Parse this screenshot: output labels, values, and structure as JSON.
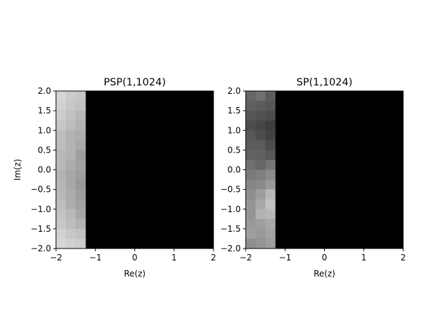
{
  "chart_data": [
    {
      "type": "heatmap",
      "title": "PSP(1,1024)",
      "xlabel": "Re(z)",
      "ylabel": "Im(z)",
      "xlim": [
        -2,
        2
      ],
      "ylim": [
        -2,
        2
      ],
      "xticks": [
        -2,
        -1,
        0,
        1,
        2
      ],
      "yticks": [
        -2.0,
        -1.5,
        -1.0,
        -0.5,
        0.0,
        0.5,
        1.0,
        1.5,
        2.0
      ],
      "xtick_labels": [
        "−2",
        "−1",
        "0",
        "1",
        "2"
      ],
      "ytick_labels": [
        "−2.0",
        "−1.5",
        "−1.0",
        "−0.5",
        "0.0",
        "0.5",
        "1.0",
        "1.5",
        "2.0"
      ],
      "colormap": "gray",
      "grid": false,
      "cell_width": 0.25,
      "cell_height": 0.25,
      "column_starts": [
        -2.0,
        -1.75,
        -1.5
      ],
      "row_starts_top_to_bottom": [
        1.75,
        1.5,
        1.25,
        1.0,
        0.75,
        0.5,
        0.25,
        0.0,
        -0.25,
        -0.5,
        -0.75,
        -1.0,
        -1.25,
        -1.5,
        -1.75,
        -2.0
      ],
      "values": [
        [
          0.84,
          0.8,
          0.78
        ],
        [
          0.82,
          0.78,
          0.76
        ],
        [
          0.8,
          0.76,
          0.72
        ],
        [
          0.78,
          0.74,
          0.7
        ],
        [
          0.74,
          0.7,
          0.68
        ],
        [
          0.74,
          0.7,
          0.66
        ],
        [
          0.72,
          0.7,
          0.62
        ],
        [
          0.72,
          0.68,
          0.64
        ],
        [
          0.7,
          0.66,
          0.62
        ],
        [
          0.72,
          0.66,
          0.6
        ],
        [
          0.72,
          0.68,
          0.62
        ],
        [
          0.74,
          0.68,
          0.64
        ],
        [
          0.76,
          0.72,
          0.66
        ],
        [
          0.78,
          0.74,
          0.7
        ],
        [
          0.82,
          0.78,
          0.76
        ],
        [
          0.84,
          0.82,
          0.8
        ]
      ],
      "background_value": 0.0
    },
    {
      "type": "heatmap",
      "title": "SP(1,1024)",
      "xlabel": "Re(z)",
      "ylabel": "",
      "xlim": [
        -2,
        2
      ],
      "ylim": [
        -2,
        2
      ],
      "xticks": [
        -2,
        -1,
        0,
        1,
        2
      ],
      "yticks": [
        -2.0,
        -1.5,
        -1.0,
        -0.5,
        0.0,
        0.5,
        1.0,
        1.5,
        2.0
      ],
      "xtick_labels": [
        "−2",
        "−1",
        "0",
        "1",
        "2"
      ],
      "ytick_labels": [
        "−2.0",
        "−1.5",
        "−1.0",
        "−0.5",
        "0.0",
        "0.5",
        "1.0",
        "1.5",
        "2.0"
      ],
      "colormap": "gray",
      "grid": false,
      "cell_width": 0.25,
      "cell_height": 0.25,
      "column_starts": [
        -2.0,
        -1.75,
        -1.5
      ],
      "row_starts_top_to_bottom": [
        1.75,
        1.5,
        1.25,
        1.0,
        0.75,
        0.5,
        0.25,
        0.0,
        -0.25,
        -0.5,
        -0.75,
        -1.0,
        -1.25,
        -1.5,
        -1.75,
        -2.0
      ],
      "values": [
        [
          0.4,
          0.44,
          0.36
        ],
        [
          0.38,
          0.36,
          0.34
        ],
        [
          0.34,
          0.32,
          0.3
        ],
        [
          0.3,
          0.28,
          0.24
        ],
        [
          0.34,
          0.3,
          0.26
        ],
        [
          0.36,
          0.36,
          0.3
        ],
        [
          0.38,
          0.38,
          0.34
        ],
        [
          0.44,
          0.4,
          0.46
        ],
        [
          0.48,
          0.5,
          0.54
        ],
        [
          0.52,
          0.54,
          0.6
        ],
        [
          0.56,
          0.62,
          0.72
        ],
        [
          0.58,
          0.66,
          0.76
        ],
        [
          0.58,
          0.7,
          0.72
        ],
        [
          0.6,
          0.62,
          0.66
        ],
        [
          0.62,
          0.6,
          0.64
        ],
        [
          0.56,
          0.58,
          0.62
        ]
      ],
      "background_value": 0.0
    }
  ]
}
